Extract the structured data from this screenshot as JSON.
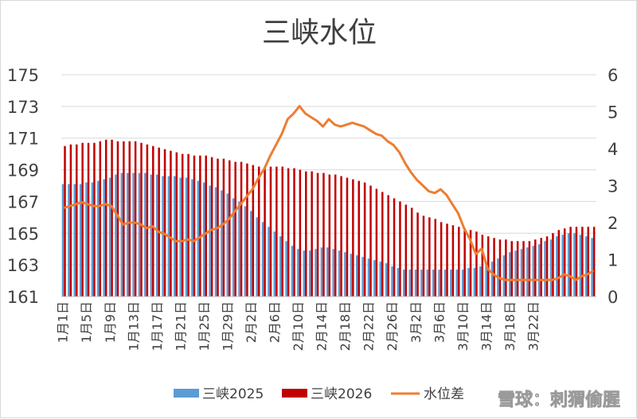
{
  "chart_data": {
    "type": "bar+line",
    "title": "三峡水位",
    "left_axis": {
      "min": 161,
      "max": 175,
      "ticks": [
        "175",
        "173",
        "171",
        "169",
        "167",
        "165",
        "163",
        "161"
      ]
    },
    "right_axis": {
      "min": 0,
      "max": 6,
      "ticks": [
        "6",
        "5",
        "4",
        "3",
        "2",
        "1",
        "0"
      ]
    },
    "x_ticks": [
      "1月1日",
      "1月5日",
      "1月9日",
      "1月13日",
      "1月17日",
      "1月21日",
      "1月25日",
      "1月29日",
      "2月2日",
      "2月6日",
      "2月10日",
      "2月14日",
      "2月18日",
      "2月22日",
      "2月26日",
      "3月2日",
      "3月6日",
      "3月10日",
      "3月14日",
      "3月18日",
      "3月22日"
    ],
    "colors": {
      "s2025": "#5b9bd5",
      "s2026": "#c00000",
      "diff": "#ed7d31",
      "grid": "#d9d9d9"
    },
    "series": [
      {
        "name": "三峡2025",
        "axis": "left",
        "values": [
          168.1,
          168.1,
          168.1,
          168.1,
          168.2,
          168.2,
          168.3,
          168.4,
          168.5,
          168.7,
          168.8,
          168.8,
          168.8,
          168.8,
          168.8,
          168.7,
          168.7,
          168.6,
          168.6,
          168.6,
          168.5,
          168.5,
          168.4,
          168.3,
          168.2,
          168.0,
          167.9,
          167.7,
          167.5,
          167.2,
          167.0,
          166.7,
          166.4,
          166.0,
          165.7,
          165.4,
          165.1,
          164.8,
          164.5,
          164.2,
          164.0,
          163.9,
          163.9,
          164.0,
          164.1,
          164.1,
          164.0,
          163.9,
          163.8,
          163.7,
          163.6,
          163.5,
          163.4,
          163.3,
          163.2,
          163.1,
          162.9,
          162.8,
          162.7,
          162.7,
          162.7,
          162.7,
          162.7,
          162.7,
          162.7,
          162.7,
          162.7,
          162.7,
          162.7,
          162.8,
          162.8,
          162.9,
          163.0,
          163.2,
          163.4,
          163.6,
          163.8,
          163.9,
          164.0,
          164.1,
          164.2,
          164.3,
          164.5,
          164.6,
          164.8,
          164.9,
          165.0,
          165.0,
          164.9,
          164.8,
          164.7
        ]
      },
      {
        "name": "三峡2026",
        "axis": "left",
        "values": [
          170.5,
          170.6,
          170.6,
          170.7,
          170.7,
          170.7,
          170.8,
          170.9,
          170.9,
          170.8,
          170.8,
          170.8,
          170.8,
          170.7,
          170.6,
          170.5,
          170.4,
          170.3,
          170.2,
          170.1,
          170.0,
          170.0,
          169.9,
          169.9,
          169.9,
          169.8,
          169.7,
          169.7,
          169.6,
          169.5,
          169.5,
          169.4,
          169.3,
          169.2,
          169.2,
          169.2,
          169.2,
          169.2,
          169.1,
          169.1,
          169.0,
          168.9,
          168.9,
          168.8,
          168.8,
          168.7,
          168.7,
          168.6,
          168.5,
          168.4,
          168.3,
          168.2,
          168.0,
          167.8,
          167.6,
          167.4,
          167.2,
          167.0,
          166.8,
          166.6,
          166.3,
          166.1,
          166.0,
          165.9,
          165.7,
          165.6,
          165.5,
          165.4,
          165.3,
          165.2,
          165.1,
          164.9,
          164.8,
          164.7,
          164.6,
          164.6,
          164.5,
          164.5,
          164.5,
          164.5,
          164.6,
          164.7,
          164.8,
          165.0,
          165.2,
          165.3,
          165.4,
          165.4,
          165.4,
          165.4,
          165.4
        ]
      },
      {
        "name": "水位差",
        "axis": "right",
        "values": [
          2.4,
          2.45,
          2.5,
          2.55,
          2.5,
          2.45,
          2.45,
          2.5,
          2.45,
          2.2,
          1.95,
          2.0,
          2.0,
          1.95,
          1.85,
          1.9,
          1.75,
          1.7,
          1.6,
          1.5,
          1.5,
          1.55,
          1.5,
          1.6,
          1.7,
          1.8,
          1.85,
          1.95,
          2.1,
          2.3,
          2.5,
          2.7,
          2.9,
          3.2,
          3.45,
          3.8,
          4.1,
          4.4,
          4.8,
          4.95,
          5.15,
          4.95,
          4.85,
          4.75,
          4.6,
          4.8,
          4.65,
          4.6,
          4.65,
          4.7,
          4.65,
          4.6,
          4.5,
          4.4,
          4.35,
          4.2,
          4.1,
          3.9,
          3.6,
          3.35,
          3.15,
          3.0,
          2.85,
          2.8,
          2.9,
          2.75,
          2.5,
          2.25,
          1.85,
          1.55,
          1.15,
          1.3,
          0.75,
          0.6,
          0.5,
          0.45,
          0.45,
          0.45,
          0.45,
          0.45,
          0.45,
          0.45,
          0.45,
          0.45,
          0.5,
          0.6,
          0.55,
          0.45,
          0.55,
          0.6,
          0.7
        ]
      }
    ],
    "legend_position": "bottom",
    "grid": true
  },
  "watermark": "雪球：刺猬偷腥"
}
